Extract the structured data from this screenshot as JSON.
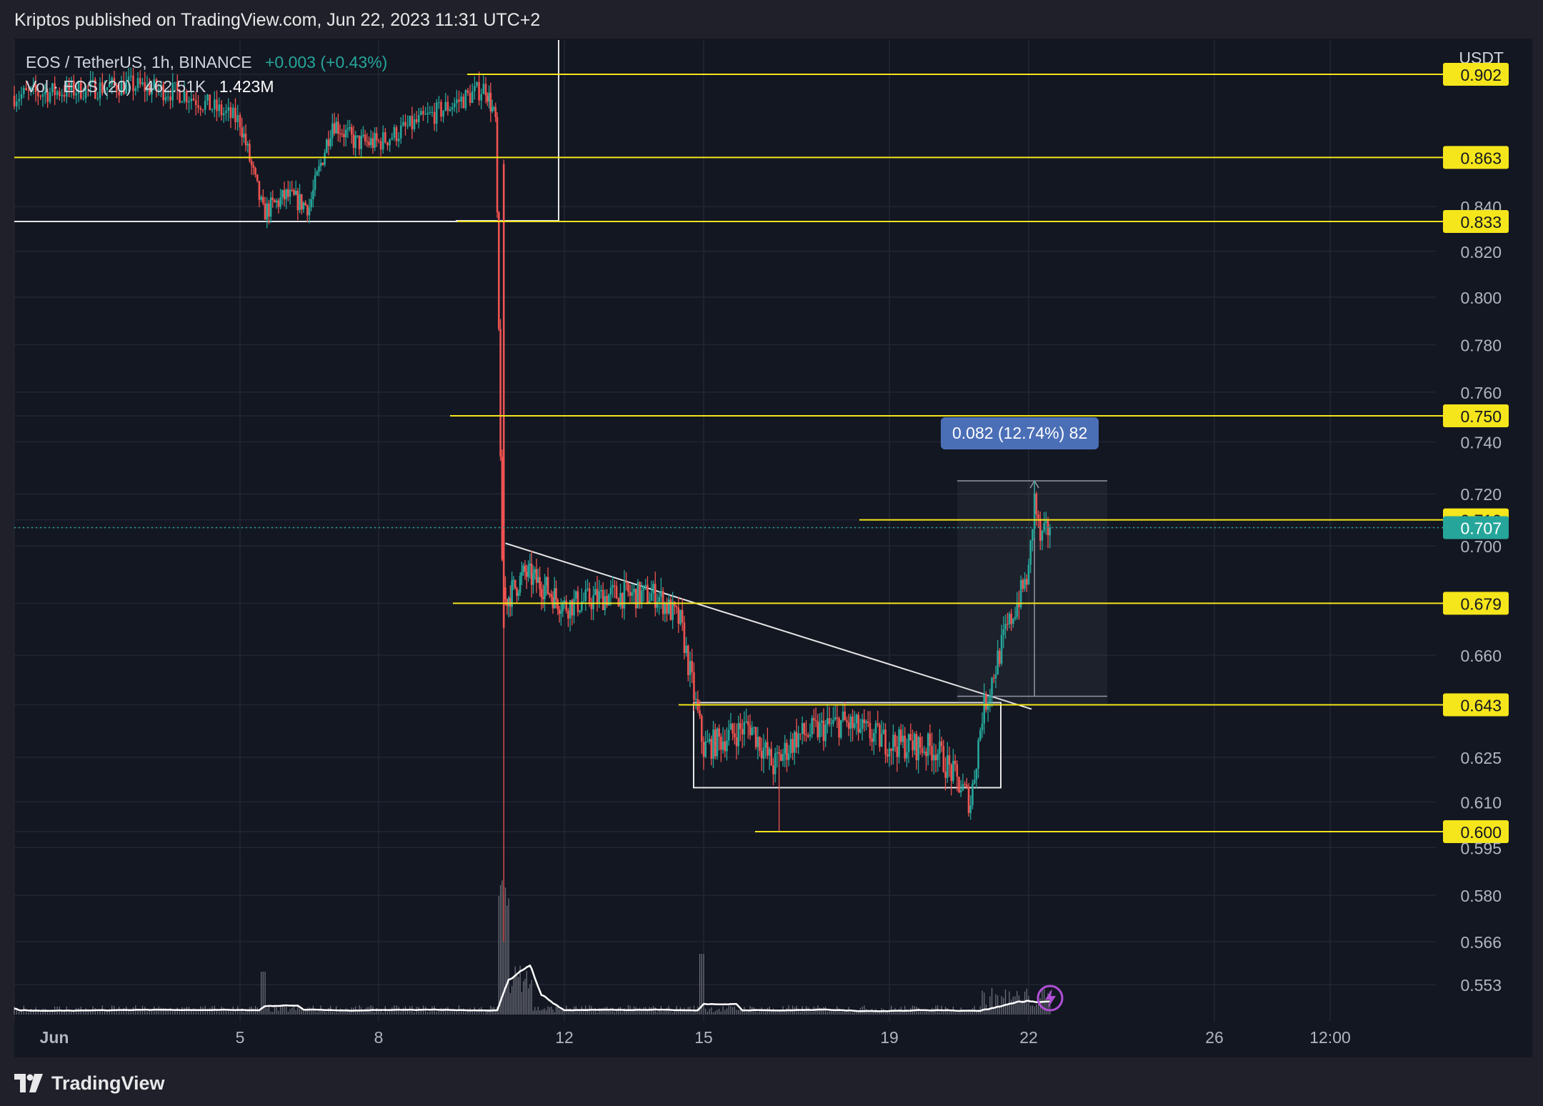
{
  "header": {
    "publish_line": "Kriptos published on TradingView.com, Jun 22, 2023 11:31 UTC+2"
  },
  "legend": {
    "symbol_line": "EOS / TetherUS, 1h, BINANCE",
    "change": "+0.003 (+0.43%)",
    "volume_label": "Vol · EOS (20)",
    "volume_value": "462.51K",
    "volume_ma": "1.423M"
  },
  "price_axis": {
    "currency": "USDT",
    "ticks": [
      "0.902",
      "0.863",
      "0.840",
      "0.833",
      "0.820",
      "0.800",
      "0.780",
      "0.760",
      "0.750",
      "0.740",
      "0.720",
      "0.710",
      "0.707",
      "0.700",
      "0.679",
      "0.660",
      "0.643",
      "0.625",
      "0.610",
      "0.600",
      "0.595",
      "0.580",
      "0.566",
      "0.553"
    ]
  },
  "time_axis": {
    "ticks": [
      "Jun",
      "5",
      "8",
      "12",
      "15",
      "19",
      "22",
      "26",
      "12:00"
    ]
  },
  "measure_label": "0.082 (12.74%) 82",
  "footer": {
    "brand": "TradingView"
  },
  "colors": {
    "background": "#131722",
    "up": "#26a69a",
    "down": "#ef5350",
    "level_line": "#f5e51b",
    "level_badge": "#f5e51b",
    "last_price_badge": "#26a69a",
    "measure_label": "#4b6fb7"
  },
  "chart_data": {
    "type": "candlestick",
    "symbol": "EOS / TetherUS",
    "interval": "1h",
    "exchange": "BINANCE",
    "y_unit": "USDT",
    "ylim": [
      0.544,
      0.905
    ],
    "x_range": [
      "Jun 1",
      "Jun 26 12:00"
    ],
    "last_price": 0.707,
    "horizontal_levels": [
      0.902,
      0.863,
      0.833,
      0.75,
      0.71,
      0.679,
      0.643,
      0.6
    ],
    "price_path": [
      {
        "date": "Jun 1",
        "price": 0.892
      },
      {
        "date": "Jun 3",
        "price": 0.897
      },
      {
        "date": "Jun 4",
        "price": 0.893
      },
      {
        "date": "Jun 5",
        "price": 0.88
      },
      {
        "date": "Jun 5 12:00",
        "price": 0.837
      },
      {
        "date": "Jun 6",
        "price": 0.845
      },
      {
        "date": "Jun 6 12:00",
        "price": 0.84
      },
      {
        "date": "Jun 7",
        "price": 0.88
      },
      {
        "date": "Jun 7 12:00",
        "price": 0.87
      },
      {
        "date": "Jun 8",
        "price": 0.87
      },
      {
        "date": "Jun 9",
        "price": 0.883
      },
      {
        "date": "Jun 10",
        "price": 0.896
      },
      {
        "date": "Jun 10 06:00",
        "price": 0.88
      },
      {
        "date": "Jun 10 10:00",
        "price": 0.69
      },
      {
        "date": "Jun 10 12:00",
        "price": 0.68
      },
      {
        "date": "Jun 11",
        "price": 0.69
      },
      {
        "date": "Jun 11 12:00",
        "price": 0.685
      },
      {
        "date": "Jun 12",
        "price": 0.678
      },
      {
        "date": "Jun 13",
        "price": 0.682
      },
      {
        "date": "Jun 14",
        "price": 0.682
      },
      {
        "date": "Jun 14 12:00",
        "price": 0.672
      },
      {
        "date": "Jun 15",
        "price": 0.628
      },
      {
        "date": "Jun 16",
        "price": 0.636
      },
      {
        "date": "Jun 16 12:00",
        "price": 0.622
      },
      {
        "date": "Jun 17",
        "price": 0.632
      },
      {
        "date": "Jun 18",
        "price": 0.637
      },
      {
        "date": "Jun 19",
        "price": 0.63
      },
      {
        "date": "Jun 20",
        "price": 0.628
      },
      {
        "date": "Jun 20 18:00",
        "price": 0.61
      },
      {
        "date": "Jun 21",
        "price": 0.64
      },
      {
        "date": "Jun 21 12:00",
        "price": 0.668
      },
      {
        "date": "Jun 22",
        "price": 0.69
      },
      {
        "date": "Jun 22 03:00",
        "price": 0.718
      },
      {
        "date": "Jun 22 06:00",
        "price": 0.702
      },
      {
        "date": "Jun 22 11:00",
        "price": 0.707
      }
    ],
    "extremes": {
      "low": 0.566,
      "low_date": "Jun 10",
      "recent_low": 0.604,
      "recent_high": 0.725
    },
    "drawings": {
      "trendline": {
        "from": {
          "date": "Jun 10 12:00",
          "price": 0.701
        },
        "to": {
          "date": "Jun 22",
          "price": 0.643
        }
      },
      "range_box": {
        "from_date": "Jun 15",
        "to_date": "Jun 21",
        "top": 0.643,
        "bottom": 0.616
      },
      "measure": {
        "from_price": 0.643,
        "to_price": 0.725,
        "change": 0.082,
        "percent": 12.74,
        "bars": 82
      }
    },
    "volume": {
      "label": "Vol · EOS (20)",
      "last": "462.51K",
      "ma": "1.423M"
    },
    "grid": true
  }
}
